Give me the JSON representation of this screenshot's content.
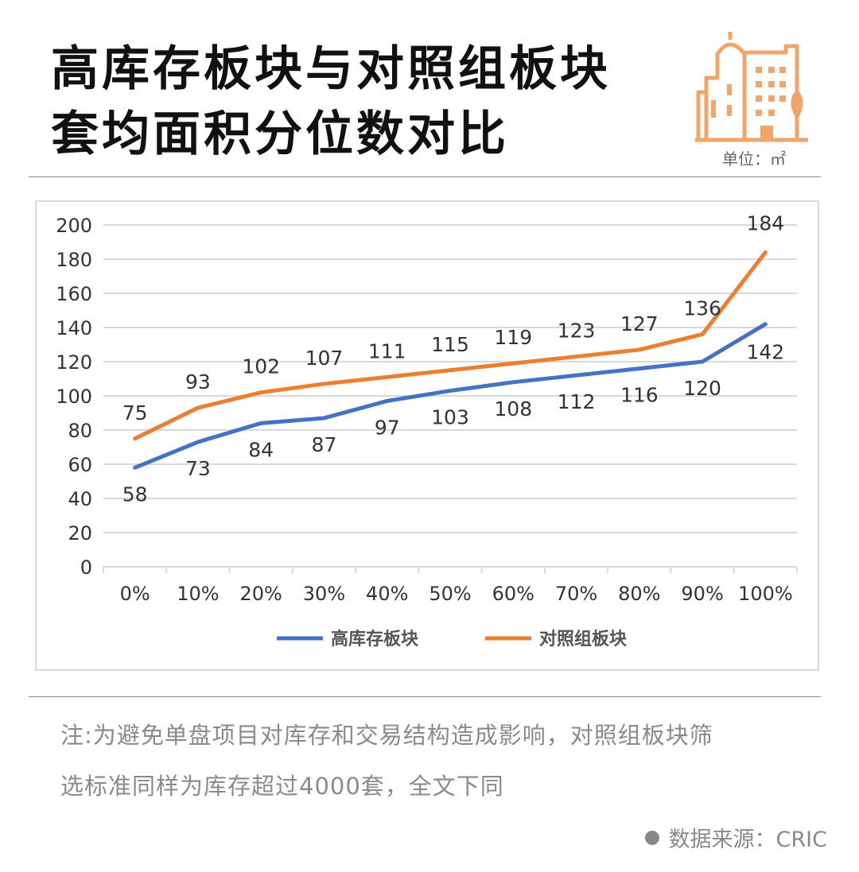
{
  "title_line1": "高库存板块与对照组板块",
  "title_line2": "套均面积分位数对比",
  "unit": "单位：㎡",
  "icon": "building-icon",
  "note_line1": "注:为避免单盘项目对库存和交易结构造成影响，对照组板块筛",
  "note_line2": "选标准同样为库存超过4000套，全文下同",
  "source": "数据来源：CRIC",
  "colors": {
    "series_high": "#4472C4",
    "series_control": "#ED7D31",
    "icon": "#F0A56A",
    "grid": "#d9d9d9"
  },
  "chart_data": {
    "type": "line",
    "title": "",
    "xlabel": "",
    "ylabel": "",
    "categories": [
      "0%",
      "10%",
      "20%",
      "30%",
      "40%",
      "50%",
      "60%",
      "70%",
      "80%",
      "90%",
      "100%"
    ],
    "ylim": [
      0,
      200
    ],
    "yticks": [
      0,
      20,
      40,
      60,
      80,
      100,
      120,
      140,
      160,
      180,
      200
    ],
    "grid": true,
    "legend_position": "bottom",
    "series": [
      {
        "name": "高库存板块",
        "values": [
          58,
          73,
          84,
          87,
          97,
          103,
          108,
          112,
          116,
          120,
          142
        ]
      },
      {
        "name": "对照组板块",
        "values": [
          75,
          93,
          102,
          107,
          111,
          115,
          119,
          123,
          127,
          136,
          184
        ]
      }
    ]
  }
}
